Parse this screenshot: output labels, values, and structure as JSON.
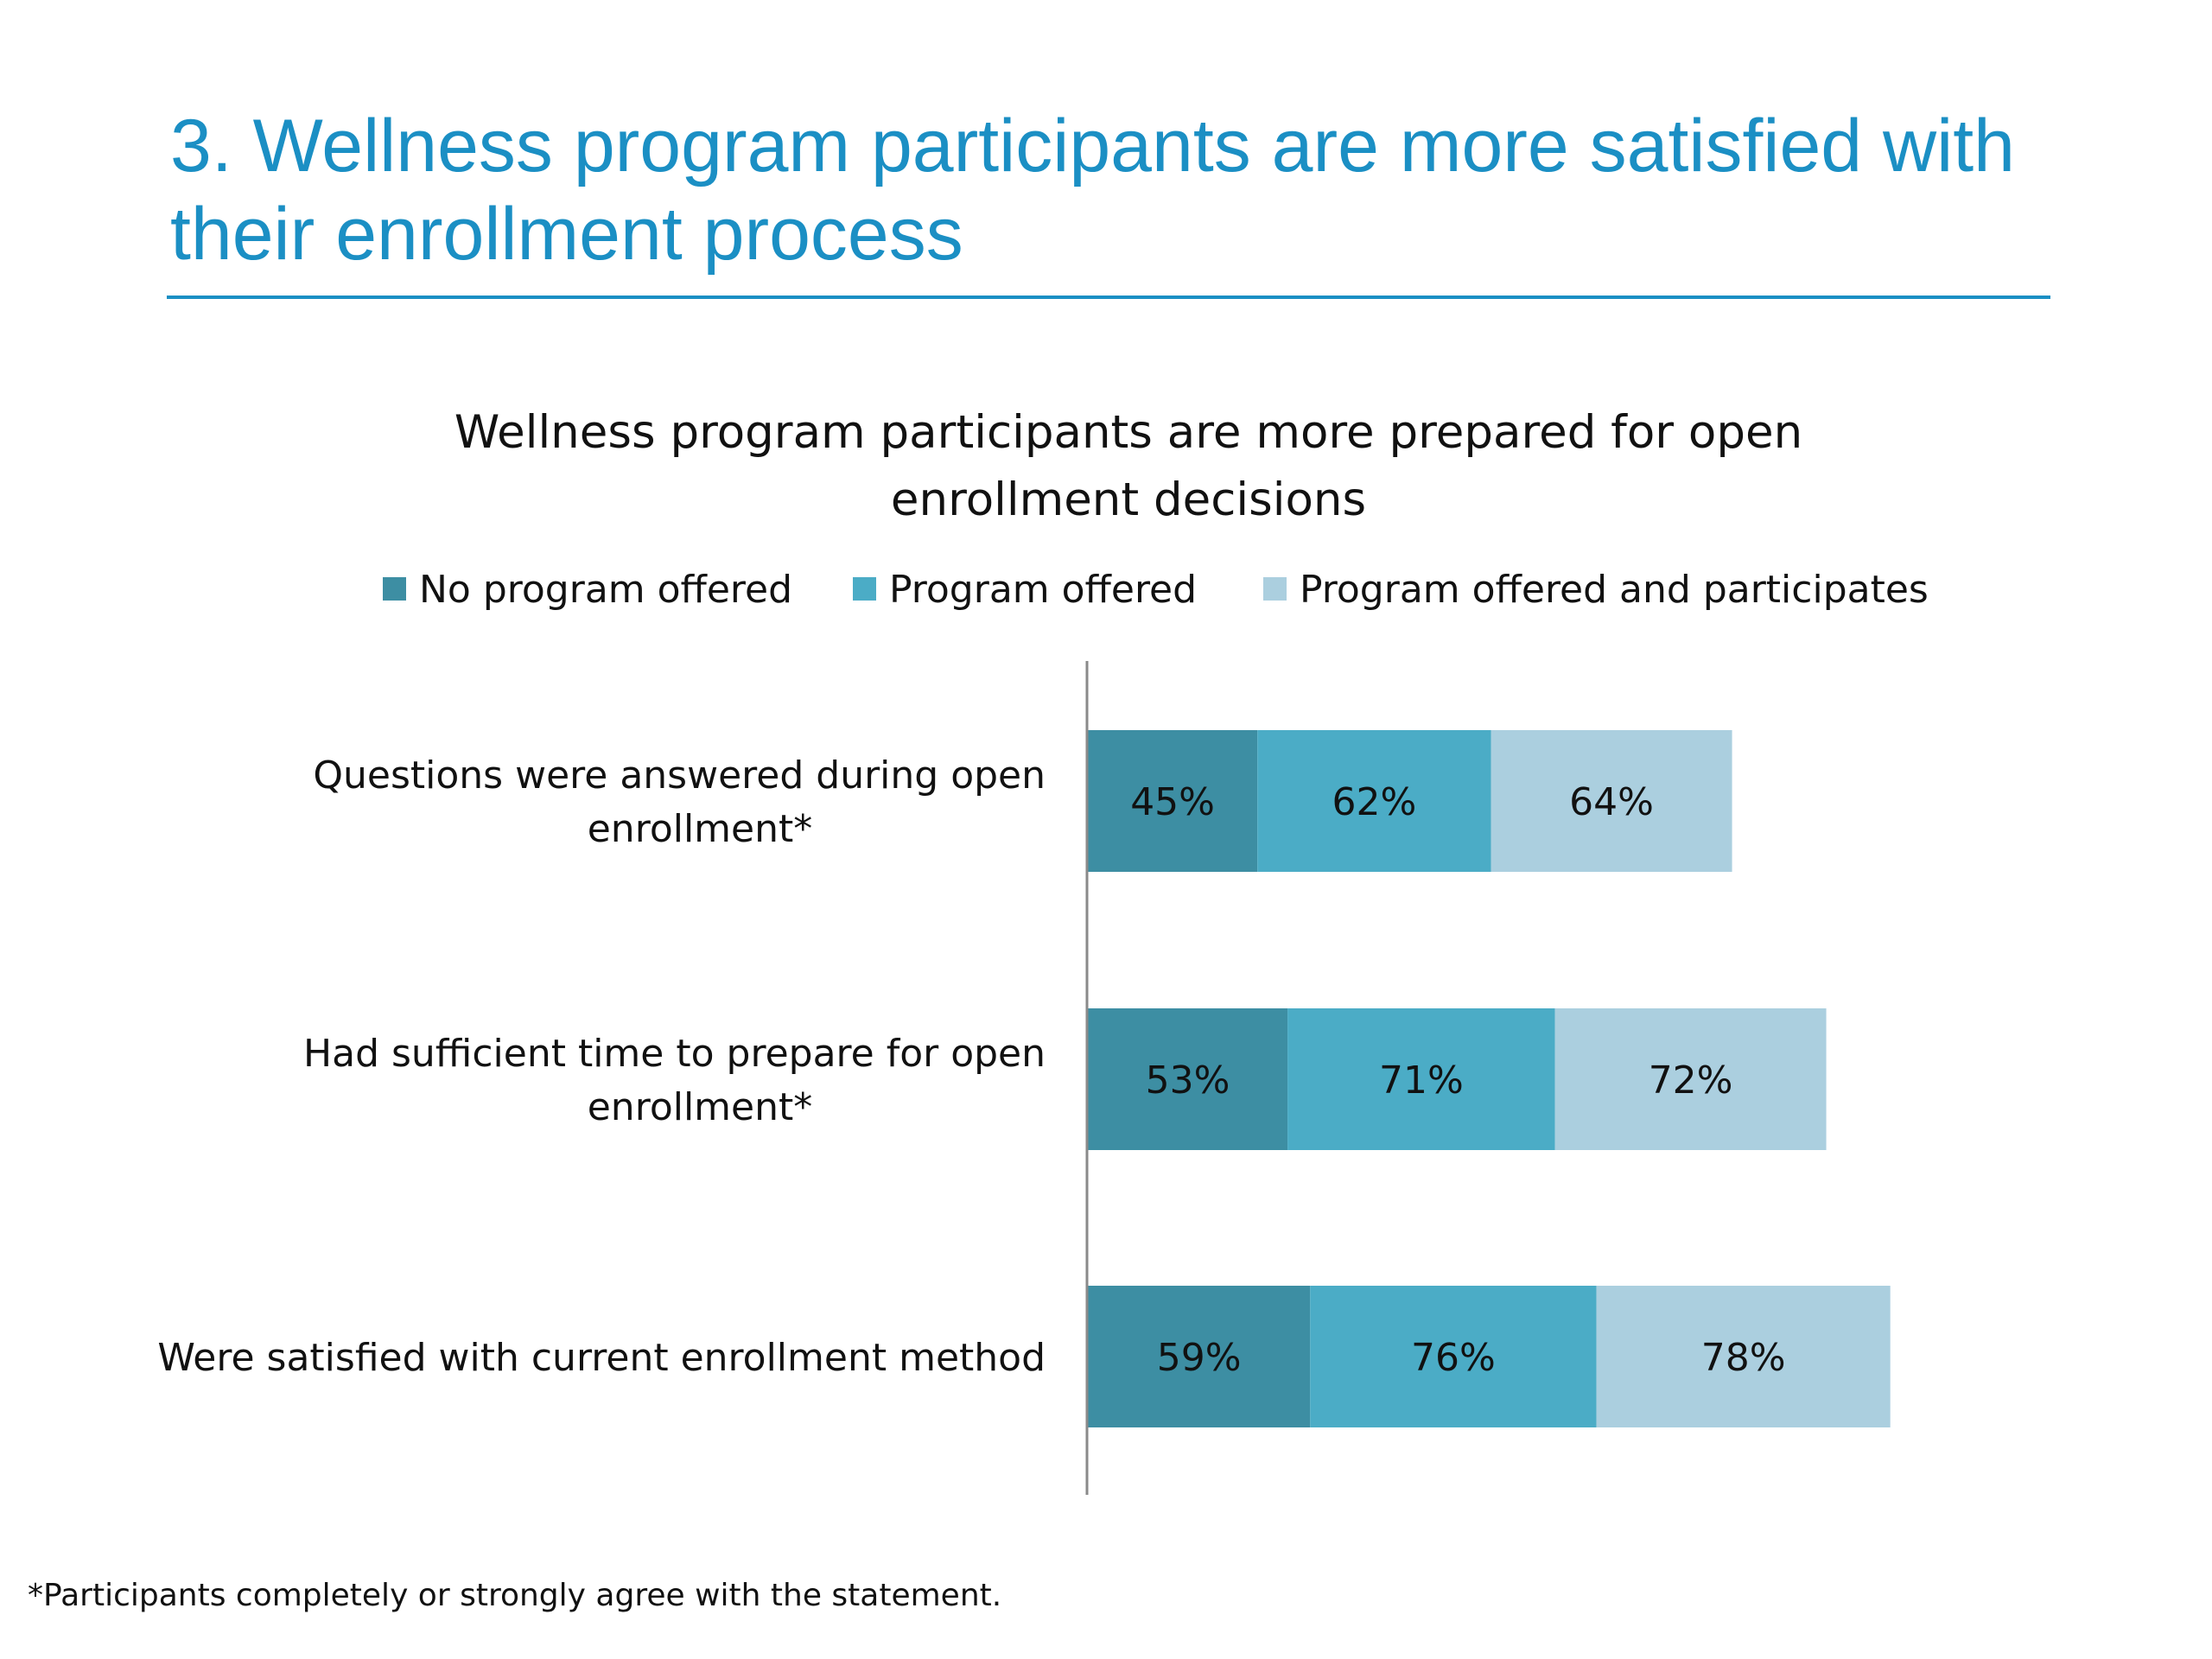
{
  "slide": {
    "title": "3. Wellness program participants  are more satisfied with their enrollment process",
    "footnote": "*Participants completely or strongly agree with the statement.",
    "accent_color": "#1b8fc4"
  },
  "chart_data": {
    "type": "bar",
    "orientation": "horizontal",
    "stacked": true,
    "title": "Wellness program participants are more prepared for open enrollment decisions",
    "title_lines": [
      "Wellness program participants are more prepared for open",
      "enrollment decisions"
    ],
    "legend_position": "top",
    "grid": false,
    "categories": [
      "Questions were answered during open enrollment*",
      "Had sufficient time to prepare for open enrollment*",
      "Were satisfied with current enrollment method"
    ],
    "category_lines": [
      [
        "Questions were answered during open",
        "enrollment*"
      ],
      [
        "Had sufficient time to prepare for open",
        "enrollment*"
      ],
      [
        "Were satisfied with current enrollment method"
      ]
    ],
    "series": [
      {
        "name": "No program offered",
        "color": "#3d8ea3",
        "values": [
          45,
          53,
          59
        ],
        "labels": [
          "45%",
          "53%",
          "59%"
        ]
      },
      {
        "name": "Program offered",
        "color": "#4bacc6",
        "values": [
          62,
          71,
          76
        ],
        "labels": [
          "62%",
          "71%",
          "76%"
        ]
      },
      {
        "name": "Program offered and participates",
        "color": "#abcfdf",
        "values": [
          64,
          72,
          78
        ],
        "labels": [
          "64%",
          "72%",
          "78%"
        ]
      }
    ]
  }
}
